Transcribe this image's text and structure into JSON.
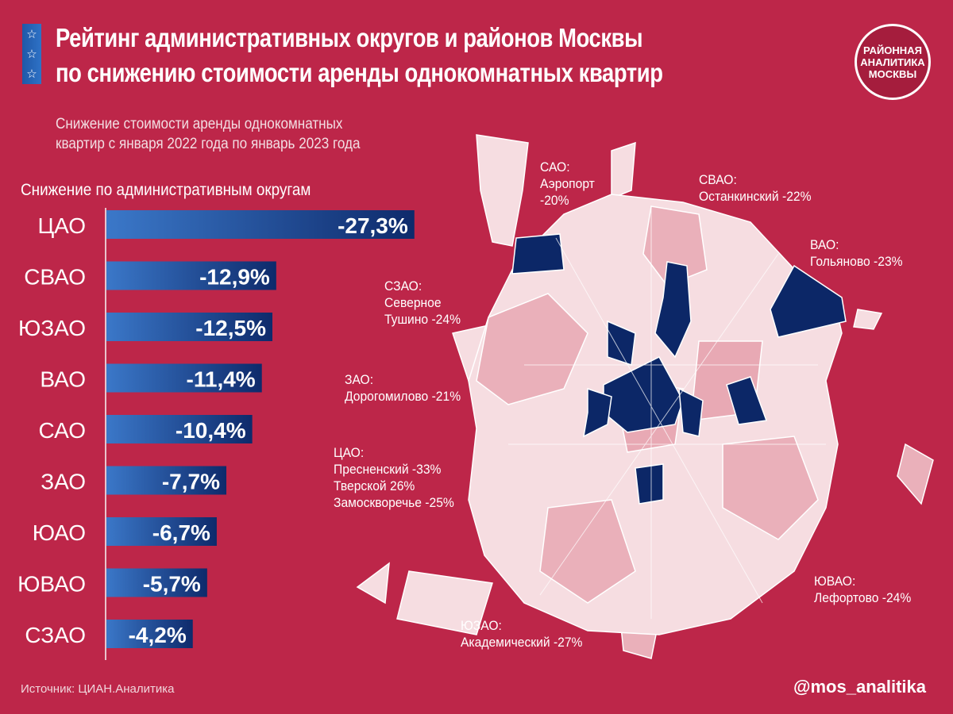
{
  "header": {
    "title_line1": "Рейтинг административных округов и районов Москвы",
    "title_line2": "по снижению стоимости аренды однокомнатных квартир",
    "stars_icon": "star-icon",
    "logo_lines": [
      "РАЙОННАЯ",
      "АНАЛИТИКА",
      "МОСКВЫ"
    ]
  },
  "subtitle_line1": "Снижение стоимости аренды однокомнатных",
  "subtitle_line2": "квартир с января 2022 года по январь 2023 года",
  "colors": {
    "background": "#bd2649",
    "bar_start": "#3b78c9",
    "bar_end": "#0e2a6b",
    "map_light": "#f6dde1",
    "map_mid": "#e8a9b4",
    "map_dark": "#0c2767"
  },
  "chart_data": {
    "type": "bar",
    "orientation": "horizontal",
    "title": "Снижение по административным округам",
    "categories": [
      "ЦАО",
      "СВАО",
      "ЮЗАО",
      "ВАО",
      "САО",
      "ЗАО",
      "ЮАО",
      "ЮВАО",
      "СЗАО"
    ],
    "values": [
      -27.3,
      -12.9,
      -12.5,
      -11.4,
      -10.4,
      -7.7,
      -6.7,
      -5.7,
      -4.2
    ],
    "data_labels": [
      "-27,3%",
      "-12,9%",
      "-12,5%",
      "-11,4%",
      "-10,4%",
      "-7,7%",
      "-6,7%",
      "-5,7%",
      "-4,2%"
    ],
    "unit": "%",
    "grid": false
  },
  "map_labels": [
    {
      "okrug": "САО:",
      "lines": [
        "Аэропорт",
        "-20%"
      ]
    },
    {
      "okrug": "СВАО:",
      "lines": [
        "Останкинский -22%"
      ]
    },
    {
      "okrug": "ВАО:",
      "lines": [
        "Гольяново -23%"
      ]
    },
    {
      "okrug": "СЗАО:",
      "lines": [
        "Северное",
        "Тушино -24%"
      ]
    },
    {
      "okrug": "ЗАО:",
      "lines": [
        "Дорогомилово -21%"
      ]
    },
    {
      "okrug": "ЦАО:",
      "lines": [
        "Пресненский -33%",
        "Тверской 26%",
        "Замоскворечье -25%"
      ]
    },
    {
      "okrug": "ЮВАО:",
      "lines": [
        "Лефортово -24%"
      ]
    },
    {
      "okrug": "ЮЗАО:",
      "lines": [
        "Академический -27%"
      ]
    }
  ],
  "footer": {
    "source": "Источник: ЦИАН.Аналитика",
    "handle": "@mos_analitika"
  }
}
